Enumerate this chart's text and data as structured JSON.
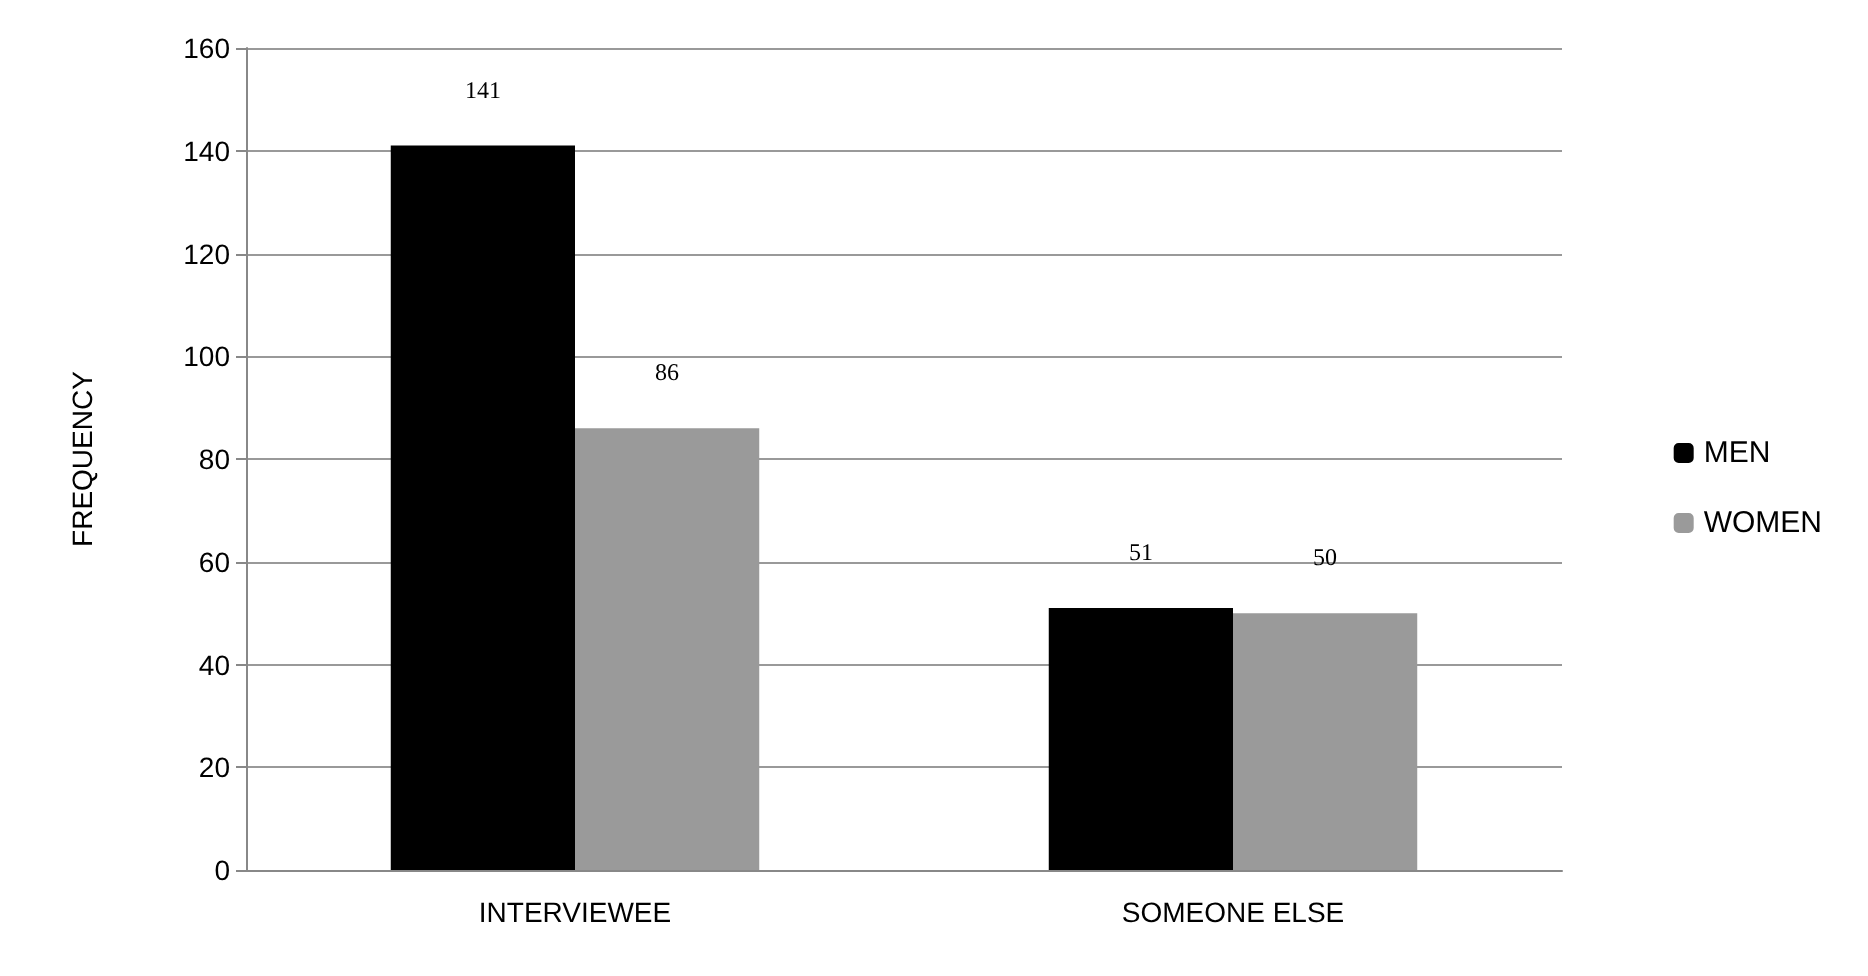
{
  "chart_data": {
    "type": "bar",
    "ylabel": "FREQUENCY",
    "categories": [
      "INTERVIEWEE",
      "SOMEONE ELSE"
    ],
    "series": [
      {
        "name": "MEN",
        "color": "#000000",
        "values": [
          141,
          51
        ]
      },
      {
        "name": "WOMEN",
        "color": "#9a9a9a",
        "values": [
          86,
          50
        ]
      }
    ],
    "ylim": [
      0,
      160
    ],
    "yticks": [
      0,
      20,
      40,
      60,
      80,
      100,
      120,
      140,
      160
    ],
    "grid": "y",
    "legend": "right",
    "data_labels": true
  }
}
